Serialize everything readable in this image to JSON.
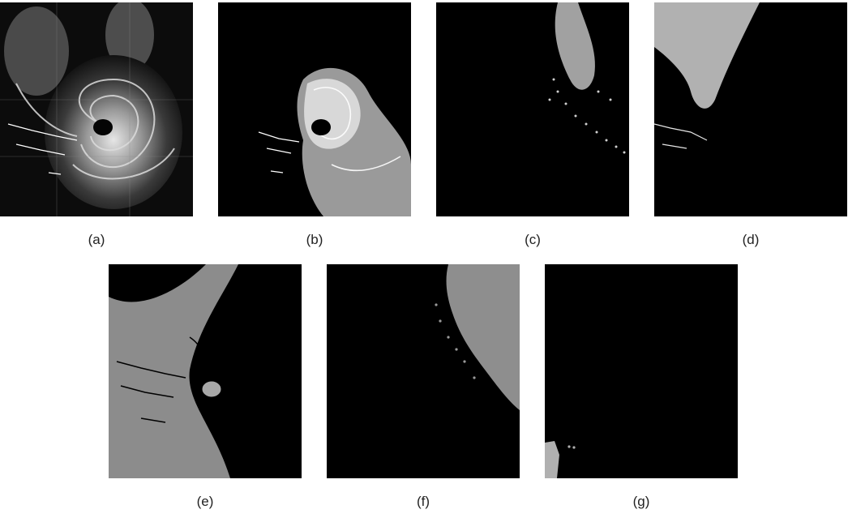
{
  "panels": [
    {
      "caption": "(a)",
      "content": "satellite-infrared-original"
    },
    {
      "caption": "(b)",
      "content": "segment-eye-wall"
    },
    {
      "caption": "(c)",
      "content": "segment-northern-cloud"
    },
    {
      "caption": "(d)",
      "content": "segment-northwest-cloud"
    },
    {
      "caption": "(e)",
      "content": "segment-background-land"
    },
    {
      "caption": "(f)",
      "content": "segment-northeast-region"
    },
    {
      "caption": "(g)",
      "content": "segment-residual"
    }
  ]
}
